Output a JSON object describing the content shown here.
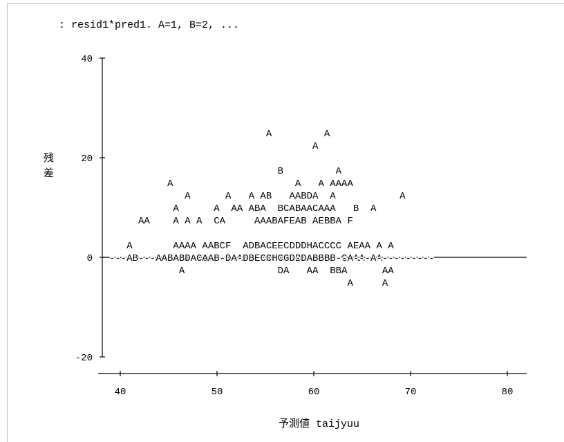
{
  "chart_data": {
    "type": "scatter",
    "title": ": resid1*pred1. A=1, B=2, ...",
    "xlabel": "予測値 taijyuu",
    "ylabel": "残差",
    "xlim": [
      38,
      82
    ],
    "ylim": [
      -20,
      40
    ],
    "x_ticks": [
      "40",
      "50",
      "60",
      "70",
      "80"
    ],
    "y_ticks": [
      "40",
      "20",
      "0",
      "-20"
    ],
    "grid": false,
    "rows": [
      {
        "y": 40,
        "text": ""
      },
      {
        "y": 37.5,
        "text": ""
      },
      {
        "y": 35,
        "text": ""
      },
      {
        "y": 32.5,
        "text": ""
      },
      {
        "y": 30,
        "text": ""
      },
      {
        "y": 27.5,
        "text": ""
      },
      {
        "y": 25,
        "text": "                           A         A"
      },
      {
        "y": 22.5,
        "text": "                                   A"
      },
      {
        "y": 20,
        "text": ""
      },
      {
        "y": 17.5,
        "text": "                             B         A"
      },
      {
        "y": 15,
        "text": "          A                     A   A AAAA"
      },
      {
        "y": 12.5,
        "text": "             A      A   A AB   AABDA  A           A"
      },
      {
        "y": 10,
        "text": "           A      A  AA ABA  BCABAACAAA   B  A"
      },
      {
        "y": 7.5,
        "text": "     AA    A A A  CA     AAABAFEAB AEBBA F"
      },
      {
        "y": 5,
        "text": ""
      },
      {
        "y": 2.5,
        "text": "   A       AAAA AABCF  ADBACEECDDDHACCCC AEAA A A"
      },
      {
        "y": 0,
        "text": "             A  BA  B ABA CAAAAABCA  BB CAAA  A"
      },
      {
        "y": -2.5,
        "text": "            A                DA   AA  BBA      AA"
      },
      {
        "y": -5,
        "text": "                                         A     A"
      },
      {
        "y": -7.5,
        "text": ""
      },
      {
        "y": -10,
        "text": ""
      },
      {
        "y": -12.5,
        "text": ""
      },
      {
        "y": -15,
        "text": ""
      },
      {
        "y": -17.5,
        "text": ""
      },
      {
        "y": -20,
        "text": ""
      }
    ],
    "zero_line_text": "---AB---AABABDACAAB-DA-DBECCHCGD-DABBBB--A---A----------"
  },
  "colors": {
    "ink": "#000000",
    "frame": "#bfbfbf",
    "background": "#ffffff"
  }
}
